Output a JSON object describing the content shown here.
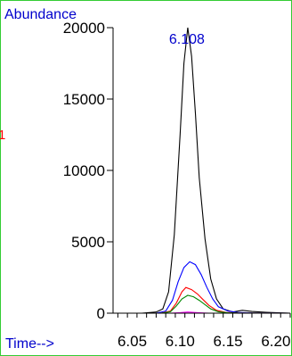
{
  "chart_data": {
    "type": "line",
    "ylabel": "Abundance",
    "xlabel": "Time-->",
    "ylim": [
      0,
      20000
    ],
    "xlim": [
      6.03,
      6.215
    ],
    "y_ticks": [
      "0",
      "5000",
      "10000",
      "15000",
      "20000"
    ],
    "x_ticks": [
      "6.05",
      "6.10",
      "6.15",
      "6.20"
    ],
    "peak_label": "6.108",
    "side_marker": "1",
    "colors": {
      "axis_label": "#0000cc",
      "peak_label": "#0000cc",
      "side_marker": "#ff0000",
      "frame": "#33cc33"
    },
    "series": [
      {
        "color": "#000000",
        "x": [
          6.03,
          6.06,
          6.075,
          6.082,
          6.088,
          6.094,
          6.1,
          6.104,
          6.108,
          6.112,
          6.116,
          6.12,
          6.126,
          6.132,
          6.138,
          6.145,
          6.155,
          6.165,
          6.175,
          6.19,
          6.215
        ],
        "y": [
          0,
          0,
          80,
          300,
          1500,
          5500,
          12500,
          17500,
          20000,
          18000,
          14000,
          9500,
          5200,
          2400,
          1000,
          300,
          80,
          200,
          120,
          60,
          0
        ]
      },
      {
        "color": "#0000ff",
        "x": [
          6.03,
          6.075,
          6.085,
          6.092,
          6.098,
          6.104,
          6.11,
          6.116,
          6.122,
          6.128,
          6.134,
          6.14,
          6.15,
          6.16,
          6.175,
          6.215
        ],
        "y": [
          0,
          0,
          150,
          900,
          2200,
          3200,
          3600,
          3400,
          2700,
          1800,
          1000,
          450,
          150,
          50,
          20,
          0
        ]
      },
      {
        "color": "#ff0000",
        "x": [
          6.03,
          6.08,
          6.09,
          6.096,
          6.102,
          6.106,
          6.112,
          6.118,
          6.124,
          6.13,
          6.138,
          6.148,
          6.16,
          6.215
        ],
        "y": [
          0,
          0,
          150,
          700,
          1500,
          1800,
          1650,
          1350,
          950,
          550,
          200,
          50,
          10,
          0
        ]
      },
      {
        "color": "#008800",
        "x": [
          6.03,
          6.08,
          6.09,
          6.096,
          6.102,
          6.108,
          6.114,
          6.12,
          6.126,
          6.132,
          6.14,
          6.15,
          6.16,
          6.215
        ],
        "y": [
          0,
          0,
          100,
          500,
          1000,
          1250,
          1150,
          900,
          600,
          300,
          100,
          30,
          10,
          0
        ]
      },
      {
        "color": "#ff00ff",
        "x": [
          6.03,
          6.09,
          6.1,
          6.108,
          6.118,
          6.13,
          6.215
        ],
        "y": [
          0,
          0,
          40,
          80,
          40,
          0,
          0
        ]
      }
    ]
  }
}
